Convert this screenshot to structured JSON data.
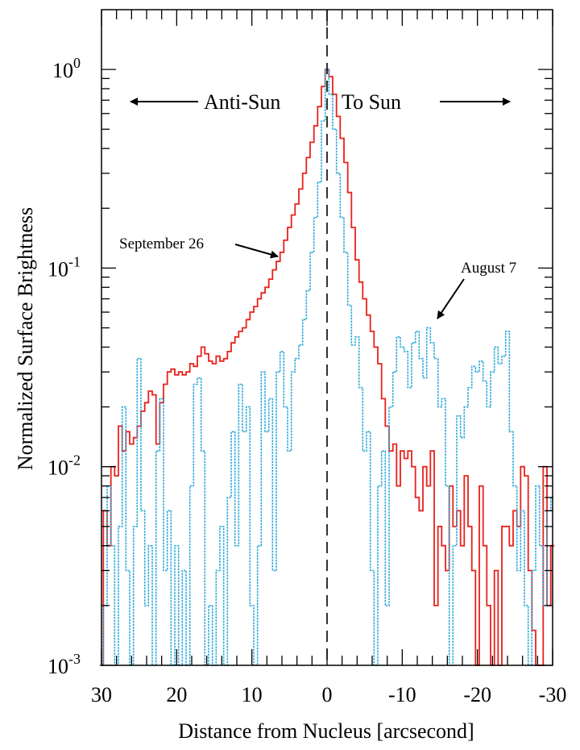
{
  "chart_data": {
    "type": "line",
    "xlabel": "Distance from Nucleus [arcsecond]",
    "ylabel": "Normalized Surface Brightness",
    "xlim": [
      30,
      -30
    ],
    "ylim": [
      0.001,
      2
    ],
    "yscale": "log",
    "grid": false,
    "x_ticks": [
      "30",
      "20",
      "10",
      "0",
      "-10",
      "-20",
      "-30"
    ],
    "x_tick_values": [
      30,
      20,
      10,
      0,
      -10,
      -20,
      -30
    ],
    "y_ticks": [
      {
        "value": 1,
        "base": "10",
        "exp": "0"
      },
      {
        "value": 0.1,
        "base": "10",
        "exp": "-1"
      },
      {
        "value": 0.01,
        "base": "10",
        "exp": "-2"
      },
      {
        "value": 0.001,
        "base": "10",
        "exp": "-3"
      }
    ],
    "annotations": {
      "anti_sun": "Anti-Sun",
      "to_sun": "To Sun",
      "september": "September 26",
      "august": "August 7"
    },
    "x": [
      30,
      29.5,
      29,
      28.5,
      28,
      27.5,
      27,
      26.5,
      26,
      25.5,
      25,
      24.5,
      24,
      23.5,
      23,
      22.5,
      22,
      21.5,
      21,
      20.5,
      20,
      19.5,
      19,
      18.5,
      18,
      17.5,
      17,
      16.5,
      16,
      15.5,
      15,
      14.5,
      14,
      13.5,
      13,
      12.5,
      12,
      11.5,
      11,
      10.5,
      10,
      9.5,
      9,
      8.5,
      8,
      7.5,
      7,
      6.5,
      6,
      5.5,
      5,
      4.5,
      4,
      3.5,
      3,
      2.5,
      2,
      1.5,
      1,
      0.5,
      0,
      -0.5,
      -1,
      -1.5,
      -2,
      -2.5,
      -3,
      -3.5,
      -4,
      -4.5,
      -5,
      -5.5,
      -6,
      -6.5,
      -7,
      -7.5,
      -8,
      -8.5,
      -9,
      -9.5,
      -10,
      -10.5,
      -11,
      -11.5,
      -12,
      -12.5,
      -13,
      -13.5,
      -14,
      -14.5,
      -15,
      -15.5,
      -16,
      -16.5,
      -17,
      -17.5,
      -18,
      -18.5,
      -19,
      -19.5,
      -20,
      -20.5,
      -21,
      -21.5,
      -22,
      -22.5,
      -23,
      -23.5,
      -24,
      -24.5,
      -25,
      -25.5,
      -26,
      -26.5,
      -27,
      -27.5,
      -28,
      -28.5,
      -29,
      -29.5,
      -30
    ],
    "series": [
      {
        "name": "September 26",
        "color": "#e8211c",
        "style": "solid",
        "values": [
          0.001,
          0.006,
          0.004,
          0.01,
          0.009,
          0.016,
          0.012,
          0.015,
          0.013,
          0.014,
          0.016,
          0.019,
          0.021,
          0.024,
          0.023,
          0.013,
          0.021,
          0.026,
          0.03,
          0.031,
          0.029,
          0.03,
          0.029,
          0.03,
          0.033,
          0.032,
          0.036,
          0.04,
          0.037,
          0.034,
          0.033,
          0.036,
          0.034,
          0.035,
          0.038,
          0.042,
          0.045,
          0.048,
          0.05,
          0.055,
          0.06,
          0.064,
          0.07,
          0.075,
          0.08,
          0.088,
          0.098,
          0.108,
          0.12,
          0.138,
          0.16,
          0.185,
          0.21,
          0.25,
          0.3,
          0.36,
          0.43,
          0.52,
          0.65,
          0.82,
          1.0,
          0.92,
          0.75,
          0.58,
          0.45,
          0.34,
          0.24,
          0.16,
          0.11,
          0.085,
          0.07,
          0.058,
          0.048,
          0.04,
          0.033,
          0.022,
          0.016,
          0.012,
          0.013,
          0.008,
          0.012,
          0.011,
          0.012,
          0.01,
          0.007,
          0.006,
          0.01,
          0.008,
          0.012,
          0.002,
          0.005,
          0.004,
          0.003,
          0.008,
          0.005,
          0.006,
          0.004,
          0.009,
          0.005,
          0.003,
          0.001,
          0.008,
          0.004,
          0.002,
          0.001,
          0.003,
          0.001,
          0.005,
          0.005,
          0.004,
          0.006,
          0.005,
          0.01,
          0.009,
          0.003,
          0.0015,
          0.001,
          0.001,
          0.01,
          0.002,
          0.004
        ]
      },
      {
        "name": "August 7",
        "color": "#2aa8d8",
        "style": "dotted",
        "values": [
          0.001,
          0.002,
          0.008,
          0.004,
          0.001,
          0.005,
          0.02,
          0.003,
          0.001,
          0.005,
          0.035,
          0.006,
          0.002,
          0.004,
          0.001,
          0.012,
          0.022,
          0.003,
          0.006,
          0.001,
          0.004,
          0.001,
          0.003,
          0.001,
          0.008,
          0.026,
          0.028,
          0.012,
          0.001,
          0.002,
          0.001,
          0.003,
          0.005,
          0.001,
          0.007,
          0.015,
          0.004,
          0.026,
          0.015,
          0.02,
          0.002,
          0.001,
          0.004,
          0.03,
          0.015,
          0.022,
          0.003,
          0.03,
          0.038,
          0.02,
          0.012,
          0.03,
          0.035,
          0.041,
          0.055,
          0.077,
          0.12,
          0.18,
          0.27,
          0.55,
          1.0,
          0.75,
          0.5,
          0.3,
          0.18,
          0.12,
          0.065,
          0.041,
          0.045,
          0.025,
          0.012,
          0.015,
          0.003,
          0.001,
          0.008,
          0.012,
          0.002,
          0.02,
          0.03,
          0.045,
          0.04,
          0.038,
          0.025,
          0.042,
          0.048,
          0.035,
          0.028,
          0.05,
          0.042,
          0.035,
          0.02,
          0.022,
          0.008,
          0.001,
          0.004,
          0.018,
          0.014,
          0.02,
          0.025,
          0.032,
          0.03,
          0.034,
          0.027,
          0.02,
          0.03,
          0.04,
          0.033,
          0.036,
          0.048,
          0.015,
          0.008,
          0.003,
          0.006,
          0.002,
          0.001,
          0.003,
          0.008,
          0.004,
          0.002,
          0.006,
          0.007
        ]
      }
    ]
  }
}
